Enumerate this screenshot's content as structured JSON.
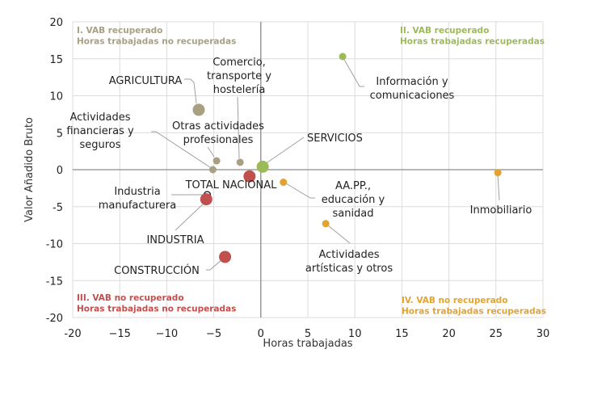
{
  "chart_data": {
    "type": "scatter",
    "title": "",
    "xlabel": "Horas trabajadas",
    "ylabel": "Valor Añadido Bruto",
    "xlim": [
      -20,
      30
    ],
    "ylim": [
      -20,
      20
    ],
    "xticks": [
      -20,
      -15,
      -10,
      -5,
      0,
      5,
      10,
      15,
      20,
      25,
      30
    ],
    "yticks": [
      20,
      15,
      10,
      5,
      0,
      -5,
      -10,
      -15,
      -20
    ],
    "xtick_labels": [
      "-20",
      "−15",
      "−10",
      "−5",
      "0",
      "5",
      "10",
      "15",
      "20",
      "25",
      "30"
    ],
    "ytick_labels": [
      "20",
      "15",
      "10",
      "5",
      "0",
      "-5",
      "-10",
      "-15",
      "-20"
    ],
    "grid": true,
    "colors": {
      "tan": "#a99f82",
      "green": "#9bbb59",
      "red": "#c0504d",
      "orange": "#e3a32f",
      "red_text": "#d0202a"
    },
    "quadrant_labels": [
      {
        "id": "q1",
        "lines": [
          "I. VAB recuperado",
          "Horas trabajadas no recuperadas"
        ],
        "color": "#a99f82",
        "position": "top-left"
      },
      {
        "id": "q2",
        "lines": [
          "II. VAB recuperado",
          "Horas trabajadas recuperadas"
        ],
        "color": "#9bbb59",
        "position": "top-right"
      },
      {
        "id": "q3",
        "lines": [
          "III. VAB no recuperado",
          "Horas trabajadas no recuperadas"
        ],
        "color": "#c0504d",
        "position": "bottom-left"
      },
      {
        "id": "q4",
        "lines": [
          "IV. VAB no recuperado",
          "Horas trabajadas recuperadas"
        ],
        "color": "#e3a32f",
        "position": "bottom-right"
      }
    ],
    "points": [
      {
        "name": "agricultura",
        "label": [
          "AGRICULTURA"
        ],
        "x": -6.6,
        "y": 8.1,
        "color": "#a99f82",
        "size": "large",
        "label_color": "#a99f82",
        "aggregate": true
      },
      {
        "name": "comercio-transporte-hosteleria",
        "label": [
          "Comercio,",
          "transporte y",
          "hostelería"
        ],
        "x": -2.2,
        "y": 1.0,
        "color": "#a99f82",
        "size": "small"
      },
      {
        "name": "otras-actividades-profesionales",
        "label": [
          "Otras actividades",
          "profesionales"
        ],
        "x": -4.7,
        "y": 1.2,
        "color": "#a99f82",
        "size": "small"
      },
      {
        "name": "actividades-financieras-seguros",
        "label": [
          "Actividades",
          "financieras y",
          "seguros"
        ],
        "x": -5.1,
        "y": 0.0,
        "color": "#a99f82",
        "size": "small"
      },
      {
        "name": "servicios",
        "label": [
          "SERVICIOS"
        ],
        "x": 0.2,
        "y": 0.4,
        "color": "#9bbb59",
        "size": "large",
        "label_color": "#9bbb59",
        "aggregate": true
      },
      {
        "name": "informacion-comunicaciones",
        "label": [
          "Información y",
          "comunicaciones"
        ],
        "x": 8.7,
        "y": 15.3,
        "color": "#9bbb59",
        "size": "small"
      },
      {
        "name": "total-nacional",
        "label": [
          "TOTAL NACIONAL"
        ],
        "x": -1.2,
        "y": -0.9,
        "color": "#c0504d",
        "size": "large",
        "label_color": "#d0202a",
        "aggregate": true
      },
      {
        "name": "industria-manufacturera",
        "label": [
          "Industria",
          "manufacturera"
        ],
        "x": -5.7,
        "y": -3.4,
        "color": "none",
        "size": "hollow"
      },
      {
        "name": "industria",
        "label": [
          "INDUSTRIA"
        ],
        "x": -5.8,
        "y": -4.0,
        "color": "#c0504d",
        "size": "large",
        "label_color": "#d0202a",
        "aggregate": true
      },
      {
        "name": "construccion",
        "label": [
          "CONSTRUCCIÓN"
        ],
        "x": -3.8,
        "y": -11.8,
        "color": "#c0504d",
        "size": "large",
        "label_color": "#d0202a",
        "aggregate": true
      },
      {
        "name": "aapp-educacion-sanidad",
        "label": [
          "AA.PP.,",
          "educación y",
          "sanidad"
        ],
        "x": 2.4,
        "y": -1.7,
        "color": "#e3a32f",
        "size": "small"
      },
      {
        "name": "actividades-artisticas-otros",
        "label": [
          "Actividades",
          "artísticas y otros"
        ],
        "x": 6.9,
        "y": -7.3,
        "color": "#e3a32f",
        "size": "small"
      },
      {
        "name": "inmobiliario",
        "label": [
          "Inmobiliario"
        ],
        "x": 25.2,
        "y": -0.4,
        "color": "#e3a32f",
        "size": "small"
      }
    ]
  }
}
